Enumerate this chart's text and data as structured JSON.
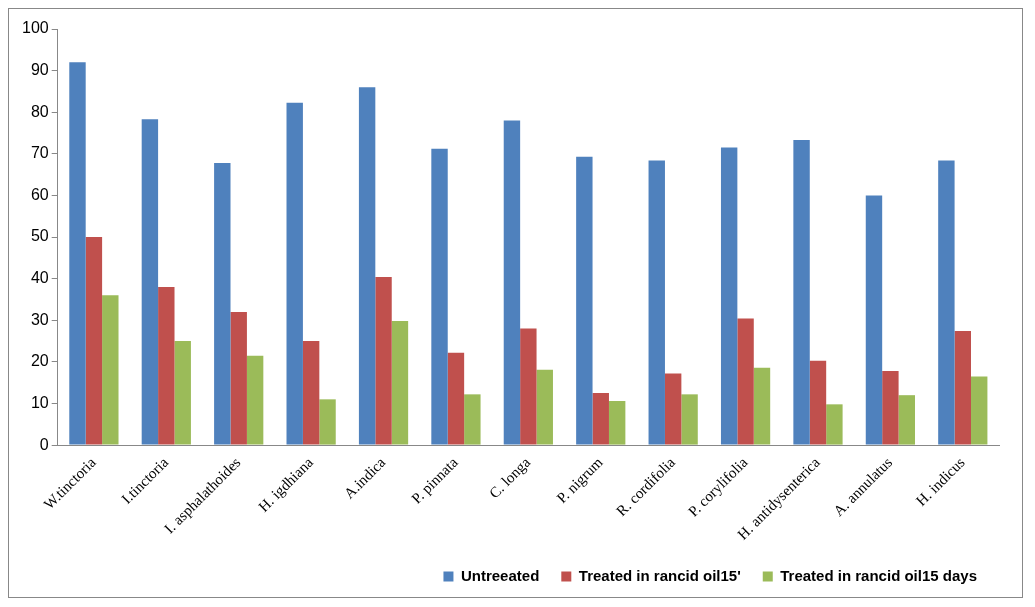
{
  "chart_data": {
    "type": "bar",
    "categories": [
      "W.tinctoria",
      "I.tinctoria",
      "I. asphalathoides",
      "H. igdhiana",
      "A.indica",
      "P. pinnata",
      "C. longa",
      "P. nigrum",
      "R. cordifolia",
      "P. corylifolia",
      "H. antidysenterica",
      "A. annulatus",
      "H. indicus"
    ],
    "series": [
      {
        "name": "Untreeated",
        "color": "#4f81bd",
        "values": [
          92,
          78.3,
          67.8,
          82.3,
          86,
          71.2,
          78,
          69.3,
          68.4,
          71.5,
          73.3,
          60,
          68.4
        ]
      },
      {
        "name": "Treated in rancid oil15'",
        "color": "#c0504d",
        "values": [
          50,
          38,
          32,
          25,
          40.4,
          22.2,
          28,
          12.5,
          17.2,
          30.4,
          20.3,
          17.8,
          27.4
        ]
      },
      {
        "name": "Treated in rancid oil15 days",
        "color": "#9bbb59",
        "values": [
          36,
          25,
          21.5,
          11,
          29.8,
          12.2,
          18.1,
          10.6,
          12.2,
          18.6,
          9.8,
          12,
          16.5
        ]
      }
    ],
    "ylim": [
      0,
      100
    ],
    "yticks": [
      0,
      10,
      20,
      30,
      40,
      50,
      60,
      70,
      80,
      90,
      100
    ],
    "grid": false,
    "legend": "bottom"
  }
}
